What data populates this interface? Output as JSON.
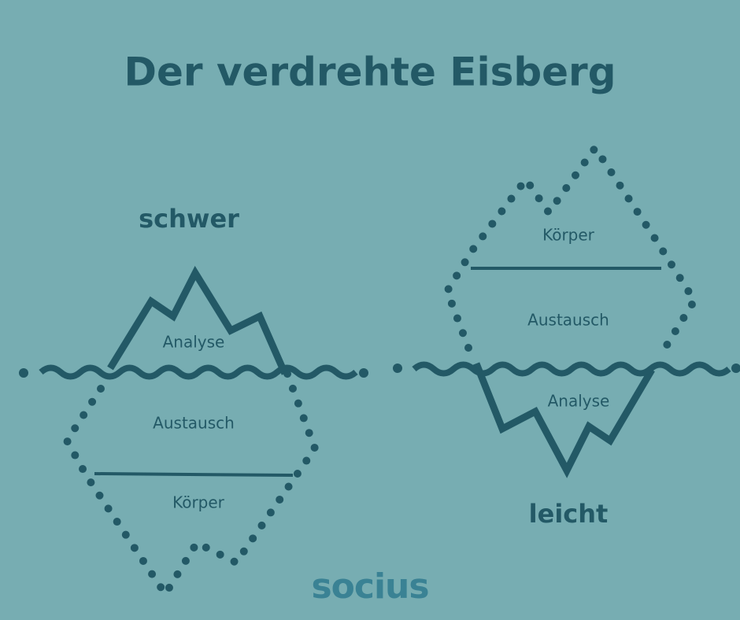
{
  "title": "Der verdrehte Eisberg",
  "left": {
    "label": "schwer",
    "sections": [
      "Analyse",
      "Austausch",
      "Körper"
    ]
  },
  "right": {
    "label": "leicht",
    "sections": [
      "Körper",
      "Austausch",
      "Analyse"
    ]
  },
  "logo": "socius"
}
